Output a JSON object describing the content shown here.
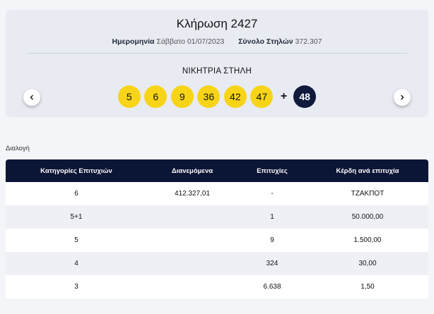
{
  "draw": {
    "title": "Κλήρωση 2427",
    "date_label": "Ημερομηνία",
    "date_value": "Σάββατο 01/07/2023",
    "columns_label": "Σύνολο Στηλών",
    "columns_value": "372.307",
    "winning_title": "ΝΙΚΗΤΡΙΑ ΣΤΗΛΗ",
    "numbers": [
      "5",
      "6",
      "9",
      "36",
      "42",
      "47"
    ],
    "plus": "+",
    "bonus": "48",
    "colors": {
      "ball": "#f7d417",
      "bonus_ball": "#0f1a3c"
    }
  },
  "nav": {
    "prev_icon": "chevron-left-icon",
    "next_icon": "chevron-right-icon"
  },
  "section_label": "Διαλογή",
  "table": {
    "headers": [
      "Κατηγορίες Επιτυχιών",
      "Διανεμόμενα",
      "Επιτυχίες",
      "Κέρδη ανά επιτυχία"
    ],
    "rows": [
      [
        "6",
        "412.327,01",
        "-",
        "ΤΖΑΚΠΟΤ"
      ],
      [
        "5+1",
        "",
        "1",
        "50.000,00"
      ],
      [
        "5",
        "",
        "9",
        "1.500,00"
      ],
      [
        "4",
        "",
        "324",
        "30,00"
      ],
      [
        "3",
        "",
        "6.638",
        "1,50"
      ]
    ],
    "header_color": "#0b1535"
  }
}
